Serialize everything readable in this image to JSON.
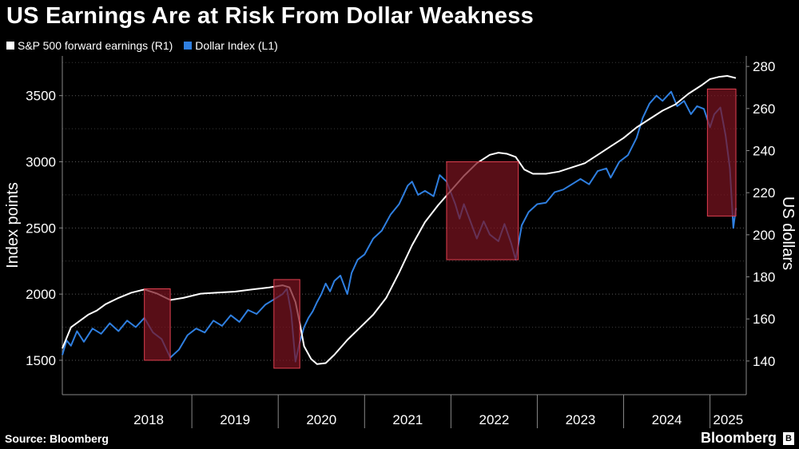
{
  "title": "US Earnings Are at Risk From Dollar Weakness",
  "source": "Source: Bloomberg",
  "brand": "Bloomberg",
  "chart_data": {
    "type": "line",
    "title": "US Earnings Are at Risk From Dollar Weakness",
    "x_labels": [
      "2018",
      "2019",
      "2020",
      "2021",
      "2022",
      "2023",
      "2024",
      "2025"
    ],
    "x_range": [
      2017.5,
      2025.42
    ],
    "left_axis": {
      "label": "Index points",
      "ticks": [
        "1500",
        "2000",
        "2500",
        "3000",
        "3500"
      ],
      "range": [
        1240,
        3800
      ]
    },
    "right_axis": {
      "label": "US dollars",
      "ticks": [
        "140",
        "160",
        "180",
        "200",
        "220",
        "240",
        "260",
        "280"
      ],
      "range": [
        124,
        285
      ]
    },
    "grid": "dotted horizontal at left-axis ticks",
    "series": [
      {
        "name": "S&P 500 forward earnings (R1)",
        "axis": "right",
        "color": "#ffffff",
        "points": [
          [
            2017.5,
            146
          ],
          [
            2017.6,
            156
          ],
          [
            2017.7,
            159
          ],
          [
            2017.8,
            162
          ],
          [
            2017.9,
            164
          ],
          [
            2018.0,
            167
          ],
          [
            2018.15,
            170
          ],
          [
            2018.3,
            172.5
          ],
          [
            2018.45,
            174
          ],
          [
            2018.6,
            172
          ],
          [
            2018.75,
            169
          ],
          [
            2018.9,
            170
          ],
          [
            2019.1,
            172
          ],
          [
            2019.3,
            172.5
          ],
          [
            2019.5,
            173
          ],
          [
            2019.7,
            174
          ],
          [
            2019.9,
            175
          ],
          [
            2020.05,
            176
          ],
          [
            2020.13,
            175
          ],
          [
            2020.2,
            168
          ],
          [
            2020.25,
            158
          ],
          [
            2020.3,
            147
          ],
          [
            2020.38,
            141
          ],
          [
            2020.45,
            138.5
          ],
          [
            2020.55,
            139
          ],
          [
            2020.65,
            143
          ],
          [
            2020.8,
            150
          ],
          [
            2020.95,
            156
          ],
          [
            2021.1,
            162
          ],
          [
            2021.25,
            170
          ],
          [
            2021.4,
            182
          ],
          [
            2021.55,
            195
          ],
          [
            2021.7,
            206
          ],
          [
            2021.85,
            214
          ],
          [
            2022.0,
            221
          ],
          [
            2022.15,
            228
          ],
          [
            2022.3,
            234
          ],
          [
            2022.45,
            238
          ],
          [
            2022.55,
            239
          ],
          [
            2022.65,
            238.5
          ],
          [
            2022.75,
            237
          ],
          [
            2022.85,
            231
          ],
          [
            2022.95,
            229
          ],
          [
            2023.1,
            229
          ],
          [
            2023.25,
            230
          ],
          [
            2023.4,
            232
          ],
          [
            2023.55,
            234
          ],
          [
            2023.7,
            238
          ],
          [
            2023.85,
            242
          ],
          [
            2024.0,
            246
          ],
          [
            2024.15,
            251
          ],
          [
            2024.3,
            255
          ],
          [
            2024.45,
            259
          ],
          [
            2024.6,
            262
          ],
          [
            2024.75,
            267
          ],
          [
            2024.9,
            271
          ],
          [
            2025.0,
            274
          ],
          [
            2025.1,
            275
          ],
          [
            2025.2,
            275.5
          ],
          [
            2025.3,
            274.5
          ]
        ]
      },
      {
        "name": "Dollar Index (L1)",
        "axis": "left",
        "color": "#2f7fe0",
        "points": [
          [
            2017.5,
            1540
          ],
          [
            2017.55,
            1650
          ],
          [
            2017.6,
            1610
          ],
          [
            2017.67,
            1720
          ],
          [
            2017.75,
            1640
          ],
          [
            2017.85,
            1740
          ],
          [
            2017.95,
            1700
          ],
          [
            2018.05,
            1780
          ],
          [
            2018.15,
            1720
          ],
          [
            2018.25,
            1800
          ],
          [
            2018.35,
            1750
          ],
          [
            2018.45,
            1820
          ],
          [
            2018.55,
            1710
          ],
          [
            2018.65,
            1660
          ],
          [
            2018.75,
            1520
          ],
          [
            2018.85,
            1580
          ],
          [
            2018.95,
            1690
          ],
          [
            2019.05,
            1740
          ],
          [
            2019.15,
            1710
          ],
          [
            2019.25,
            1800
          ],
          [
            2019.35,
            1760
          ],
          [
            2019.45,
            1840
          ],
          [
            2019.55,
            1790
          ],
          [
            2019.65,
            1880
          ],
          [
            2019.75,
            1850
          ],
          [
            2019.85,
            1920
          ],
          [
            2019.95,
            1960
          ],
          [
            2020.05,
            2000
          ],
          [
            2020.1,
            2040
          ],
          [
            2020.15,
            1860
          ],
          [
            2020.2,
            1490
          ],
          [
            2020.25,
            1640
          ],
          [
            2020.3,
            1750
          ],
          [
            2020.35,
            1820
          ],
          [
            2020.4,
            1870
          ],
          [
            2020.45,
            1940
          ],
          [
            2020.5,
            2000
          ],
          [
            2020.55,
            2080
          ],
          [
            2020.6,
            2020
          ],
          [
            2020.65,
            2100
          ],
          [
            2020.72,
            2140
          ],
          [
            2020.8,
            2000
          ],
          [
            2020.85,
            2160
          ],
          [
            2020.92,
            2260
          ],
          [
            2021.0,
            2300
          ],
          [
            2021.1,
            2420
          ],
          [
            2021.2,
            2480
          ],
          [
            2021.3,
            2600
          ],
          [
            2021.4,
            2680
          ],
          [
            2021.5,
            2820
          ],
          [
            2021.55,
            2850
          ],
          [
            2021.62,
            2750
          ],
          [
            2021.7,
            2780
          ],
          [
            2021.8,
            2740
          ],
          [
            2021.87,
            2900
          ],
          [
            2021.95,
            2850
          ],
          [
            2022.05,
            2680
          ],
          [
            2022.1,
            2570
          ],
          [
            2022.15,
            2680
          ],
          [
            2022.22,
            2560
          ],
          [
            2022.3,
            2420
          ],
          [
            2022.38,
            2550
          ],
          [
            2022.45,
            2450
          ],
          [
            2022.55,
            2400
          ],
          [
            2022.62,
            2530
          ],
          [
            2022.7,
            2380
          ],
          [
            2022.75,
            2260
          ],
          [
            2022.82,
            2520
          ],
          [
            2022.9,
            2620
          ],
          [
            2023.0,
            2680
          ],
          [
            2023.1,
            2690
          ],
          [
            2023.2,
            2770
          ],
          [
            2023.3,
            2790
          ],
          [
            2023.4,
            2830
          ],
          [
            2023.5,
            2870
          ],
          [
            2023.6,
            2830
          ],
          [
            2023.7,
            2930
          ],
          [
            2023.8,
            2950
          ],
          [
            2023.85,
            2880
          ],
          [
            2023.95,
            3000
          ],
          [
            2024.05,
            3050
          ],
          [
            2024.15,
            3180
          ],
          [
            2024.22,
            3330
          ],
          [
            2024.3,
            3440
          ],
          [
            2024.38,
            3500
          ],
          [
            2024.45,
            3460
          ],
          [
            2024.55,
            3530
          ],
          [
            2024.62,
            3420
          ],
          [
            2024.7,
            3460
          ],
          [
            2024.78,
            3360
          ],
          [
            2024.85,
            3420
          ],
          [
            2024.93,
            3400
          ],
          [
            2025.0,
            3260
          ],
          [
            2025.05,
            3360
          ],
          [
            2025.12,
            3410
          ],
          [
            2025.18,
            3200
          ],
          [
            2025.23,
            2950
          ],
          [
            2025.27,
            2500
          ],
          [
            2025.3,
            2650
          ]
        ]
      }
    ],
    "highlight_periods": [
      {
        "x0": 2018.45,
        "x1": 2018.75,
        "y0_left": 1500,
        "y1_left": 2040
      },
      {
        "x0": 2019.95,
        "x1": 2020.25,
        "y0_left": 1440,
        "y1_left": 2110
      },
      {
        "x0": 2021.95,
        "x1": 2022.78,
        "y0_left": 2260,
        "y1_left": 3000
      },
      {
        "x0": 2024.97,
        "x1": 2025.3,
        "y0_left": 2590,
        "y1_left": 3550
      }
    ]
  },
  "colors": {
    "background": "#000000",
    "highlight_fill": "#7a1420",
    "highlight_stroke": "#e04050",
    "earnings": "#ffffff",
    "dollar": "#2f7fe0"
  }
}
